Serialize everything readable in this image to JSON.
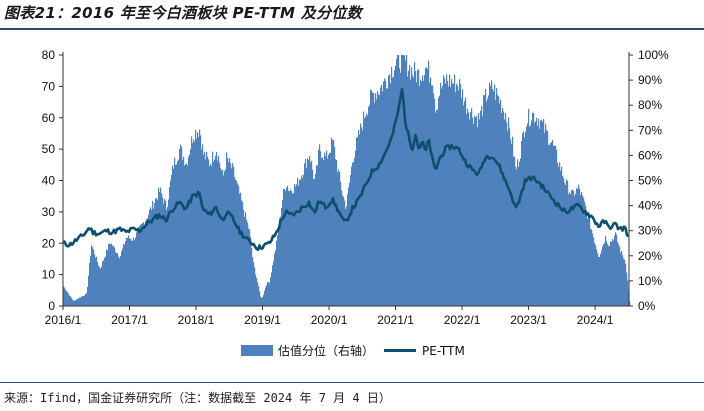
{
  "title": "图表21：2016 年至今白酒板块 PE-TTM 及分位数",
  "source": "来源：Ifind，国金证券研究所（注：数据截至 2024 年 7 月 4 日）",
  "chart_data": {
    "type": "bar+line",
    "title": "2016 年至今白酒板块 PE-TTM 及分位数",
    "x_tick_labels": [
      "2016/1",
      "2017/1",
      "2018/1",
      "2019/1",
      "2020/1",
      "2021/1",
      "2022/1",
      "2023/1",
      "2024/1"
    ],
    "left_axis": {
      "ylim": [
        0,
        80
      ],
      "ticks": [
        "0",
        "10",
        "20",
        "30",
        "40",
        "50",
        "60",
        "70",
        "80"
      ]
    },
    "right_axis": {
      "ylim": [
        0,
        100
      ],
      "ticks": [
        "0%",
        "10%",
        "20%",
        "30%",
        "40%",
        "50%",
        "60%",
        "70%",
        "80%",
        "90%",
        "100%"
      ]
    },
    "series": [
      {
        "name": "估值分位（右轴）",
        "type": "area",
        "axis": "right",
        "color": "#4f81bd",
        "points": [
          [
            2016.0,
            8
          ],
          [
            2016.15,
            2
          ],
          [
            2016.35,
            5
          ],
          [
            2016.42,
            25
          ],
          [
            2016.55,
            15
          ],
          [
            2016.7,
            26
          ],
          [
            2016.85,
            20
          ],
          [
            2016.95,
            28
          ],
          [
            2017.05,
            27
          ],
          [
            2017.25,
            36
          ],
          [
            2017.45,
            47
          ],
          [
            2017.55,
            40
          ],
          [
            2017.65,
            57
          ],
          [
            2017.75,
            64
          ],
          [
            2017.85,
            58
          ],
          [
            2017.95,
            70
          ],
          [
            2018.05,
            72
          ],
          [
            2018.1,
            62
          ],
          [
            2018.2,
            58
          ],
          [
            2018.3,
            64
          ],
          [
            2018.4,
            52
          ],
          [
            2018.45,
            60
          ],
          [
            2018.55,
            55
          ],
          [
            2018.65,
            45
          ],
          [
            2018.75,
            35
          ],
          [
            2018.8,
            30
          ],
          [
            2018.85,
            18
          ],
          [
            2018.93,
            8
          ],
          [
            2018.97,
            3
          ],
          [
            2019.0,
            4
          ],
          [
            2019.05,
            9
          ],
          [
            2019.1,
            10
          ],
          [
            2019.2,
            25
          ],
          [
            2019.3,
            45
          ],
          [
            2019.35,
            50
          ],
          [
            2019.4,
            47
          ],
          [
            2019.5,
            49
          ],
          [
            2019.6,
            55
          ],
          [
            2019.7,
            62
          ],
          [
            2019.78,
            50
          ],
          [
            2019.85,
            64
          ],
          [
            2019.95,
            60
          ],
          [
            2020.05,
            67
          ],
          [
            2020.15,
            52
          ],
          [
            2020.2,
            45
          ],
          [
            2020.25,
            40
          ],
          [
            2020.35,
            60
          ],
          [
            2020.45,
            70
          ],
          [
            2020.55,
            80
          ],
          [
            2020.65,
            86
          ],
          [
            2020.75,
            88
          ],
          [
            2020.85,
            92
          ],
          [
            2020.95,
            97
          ],
          [
            2021.05,
            100
          ],
          [
            2021.15,
            99
          ],
          [
            2021.25,
            95
          ],
          [
            2021.35,
            94
          ],
          [
            2021.45,
            97
          ],
          [
            2021.55,
            93
          ],
          [
            2021.6,
            80
          ],
          [
            2021.65,
            87
          ],
          [
            2021.75,
            92
          ],
          [
            2021.85,
            91
          ],
          [
            2021.95,
            90
          ],
          [
            2022.05,
            82
          ],
          [
            2022.15,
            78
          ],
          [
            2022.25,
            76
          ],
          [
            2022.35,
            85
          ],
          [
            2022.45,
            89
          ],
          [
            2022.55,
            84
          ],
          [
            2022.65,
            78
          ],
          [
            2022.75,
            66
          ],
          [
            2022.8,
            55
          ],
          [
            2022.85,
            60
          ],
          [
            2022.95,
            75
          ],
          [
            2023.05,
            78
          ],
          [
            2023.15,
            76
          ],
          [
            2023.25,
            71
          ],
          [
            2023.35,
            66
          ],
          [
            2023.45,
            58
          ],
          [
            2023.55,
            50
          ],
          [
            2023.65,
            45
          ],
          [
            2023.75,
            48
          ],
          [
            2023.85,
            40
          ],
          [
            2023.95,
            30
          ],
          [
            2024.05,
            20
          ],
          [
            2024.15,
            28
          ],
          [
            2024.2,
            25
          ],
          [
            2024.3,
            29
          ],
          [
            2024.38,
            22
          ],
          [
            2024.45,
            18
          ],
          [
            2024.5,
            5
          ],
          [
            2024.51,
            2
          ]
        ]
      },
      {
        "name": "PE-TTM",
        "type": "line",
        "axis": "left",
        "color": "#0d4f6e",
        "points": [
          [
            2016.0,
            20
          ],
          [
            2016.1,
            19.5
          ],
          [
            2016.2,
            21
          ],
          [
            2016.3,
            22.5
          ],
          [
            2016.4,
            25
          ],
          [
            2016.45,
            23.5
          ],
          [
            2016.55,
            23
          ],
          [
            2016.65,
            24
          ],
          [
            2016.75,
            23.5
          ],
          [
            2016.85,
            24.5
          ],
          [
            2016.95,
            23.5
          ],
          [
            2017.05,
            24.5
          ],
          [
            2017.15,
            24
          ],
          [
            2017.25,
            26
          ],
          [
            2017.35,
            27.5
          ],
          [
            2017.45,
            29
          ],
          [
            2017.55,
            27.5
          ],
          [
            2017.65,
            31
          ],
          [
            2017.75,
            33
          ],
          [
            2017.85,
            31
          ],
          [
            2017.95,
            35
          ],
          [
            2018.05,
            36
          ],
          [
            2018.1,
            31
          ],
          [
            2018.2,
            29
          ],
          [
            2018.3,
            31.5
          ],
          [
            2018.4,
            27
          ],
          [
            2018.45,
            30
          ],
          [
            2018.55,
            28
          ],
          [
            2018.65,
            24
          ],
          [
            2018.75,
            21.5
          ],
          [
            2018.85,
            20
          ],
          [
            2018.93,
            18.5
          ],
          [
            2019.0,
            19
          ],
          [
            2019.1,
            20
          ],
          [
            2019.2,
            23
          ],
          [
            2019.3,
            28
          ],
          [
            2019.35,
            30
          ],
          [
            2019.4,
            29
          ],
          [
            2019.5,
            29.5
          ],
          [
            2019.6,
            31.5
          ],
          [
            2019.7,
            33
          ],
          [
            2019.78,
            29.5
          ],
          [
            2019.85,
            33.5
          ],
          [
            2019.95,
            31.5
          ],
          [
            2020.05,
            34
          ],
          [
            2020.15,
            30
          ],
          [
            2020.2,
            27.5
          ],
          [
            2020.25,
            26.5
          ],
          [
            2020.35,
            31
          ],
          [
            2020.45,
            34
          ],
          [
            2020.55,
            38.5
          ],
          [
            2020.65,
            43
          ],
          [
            2020.75,
            45
          ],
          [
            2020.85,
            49
          ],
          [
            2020.95,
            54
          ],
          [
            2021.05,
            63
          ],
          [
            2021.1,
            69.5
          ],
          [
            2021.15,
            58
          ],
          [
            2021.2,
            54
          ],
          [
            2021.25,
            50
          ],
          [
            2021.3,
            55
          ],
          [
            2021.35,
            50
          ],
          [
            2021.4,
            52.5
          ],
          [
            2021.45,
            49
          ],
          [
            2021.5,
            53
          ],
          [
            2021.55,
            47
          ],
          [
            2021.6,
            43
          ],
          [
            2021.65,
            46.5
          ],
          [
            2021.75,
            50
          ],
          [
            2021.85,
            51
          ],
          [
            2021.95,
            50
          ],
          [
            2022.05,
            46
          ],
          [
            2022.15,
            43.5
          ],
          [
            2022.25,
            42
          ],
          [
            2022.35,
            47.5
          ],
          [
            2022.45,
            48
          ],
          [
            2022.55,
            45
          ],
          [
            2022.65,
            40
          ],
          [
            2022.75,
            35
          ],
          [
            2022.8,
            31
          ],
          [
            2022.85,
            33
          ],
          [
            2022.95,
            40
          ],
          [
            2023.05,
            41
          ],
          [
            2023.15,
            39.5
          ],
          [
            2023.25,
            37
          ],
          [
            2023.35,
            34.5
          ],
          [
            2023.45,
            32
          ],
          [
            2023.55,
            30
          ],
          [
            2023.65,
            31
          ],
          [
            2023.75,
            32
          ],
          [
            2023.85,
            30
          ],
          [
            2023.95,
            28.5
          ],
          [
            2024.05,
            25.5
          ],
          [
            2024.15,
            27
          ],
          [
            2024.2,
            25
          ],
          [
            2024.3,
            26
          ],
          [
            2024.38,
            24.5
          ],
          [
            2024.45,
            25
          ],
          [
            2024.51,
            21.5
          ]
        ]
      }
    ],
    "legend": [
      "估值分位（右轴）",
      "PE-TTM"
    ],
    "legend_position": "bottom-center"
  }
}
